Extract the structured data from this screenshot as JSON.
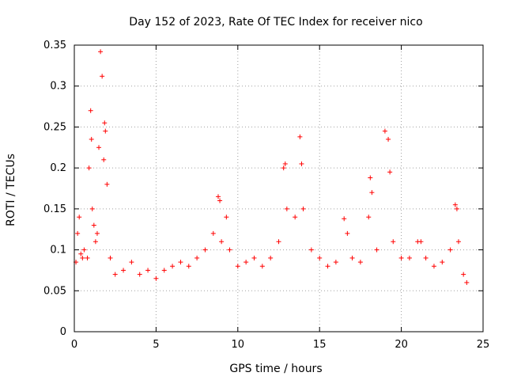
{
  "chart_data": {
    "type": "scatter",
    "title": "Day 152 of 2023, Rate Of TEC Index for receiver nico",
    "xlabel": "GPS time / hours",
    "ylabel": "ROTI / TECUs",
    "xlim": [
      0,
      25
    ],
    "ylim": [
      0,
      0.35
    ],
    "x_ticks": [
      0,
      5,
      10,
      15,
      20,
      25
    ],
    "x_tick_labels": [
      "0",
      "5",
      "10",
      "15",
      "20",
      "25"
    ],
    "y_ticks": [
      0,
      0.05,
      0.1,
      0.15,
      0.2,
      0.25,
      0.3,
      0.35
    ],
    "y_tick_labels": [
      "0",
      "0.05",
      "0.1",
      "0.15",
      "0.2",
      "0.25",
      "0.3",
      "0.35"
    ],
    "grid": true,
    "marker": "+",
    "color": "#ff0000",
    "series": [
      {
        "name": "ROTI",
        "x": [
          0.1,
          0.2,
          0.3,
          0.4,
          0.5,
          0.6,
          0.8,
          0.9,
          1.0,
          1.05,
          1.1,
          1.2,
          1.3,
          1.4,
          1.5,
          1.6,
          1.7,
          1.8,
          1.85,
          1.9,
          2.0,
          2.2,
          2.5,
          3.0,
          3.5,
          4.0,
          4.5,
          5.0,
          5.5,
          6.0,
          6.5,
          7.0,
          7.5,
          8.0,
          8.5,
          8.8,
          8.9,
          9.0,
          9.3,
          9.5,
          10.0,
          10.5,
          11.0,
          11.5,
          12.0,
          12.5,
          12.8,
          12.9,
          13.0,
          13.5,
          13.8,
          13.9,
          14.0,
          14.5,
          15.0,
          15.5,
          16.0,
          16.5,
          16.7,
          17.0,
          17.5,
          18.0,
          18.1,
          18.2,
          18.5,
          19.0,
          19.2,
          19.3,
          19.5,
          20.0,
          20.5,
          21.0,
          21.2,
          21.5,
          22.0,
          22.5,
          23.0,
          23.3,
          23.4,
          23.5,
          23.8,
          24.0
        ],
        "y": [
          0.085,
          0.12,
          0.14,
          0.095,
          0.09,
          0.1,
          0.09,
          0.2,
          0.27,
          0.235,
          0.15,
          0.13,
          0.11,
          0.12,
          0.225,
          0.342,
          0.312,
          0.21,
          0.255,
          0.245,
          0.18,
          0.09,
          0.07,
          0.075,
          0.085,
          0.07,
          0.075,
          0.065,
          0.075,
          0.08,
          0.085,
          0.08,
          0.09,
          0.1,
          0.12,
          0.165,
          0.16,
          0.11,
          0.14,
          0.1,
          0.08,
          0.085,
          0.09,
          0.08,
          0.09,
          0.11,
          0.2,
          0.205,
          0.15,
          0.14,
          0.238,
          0.205,
          0.15,
          0.1,
          0.09,
          0.08,
          0.085,
          0.138,
          0.12,
          0.09,
          0.085,
          0.14,
          0.188,
          0.17,
          0.1,
          0.245,
          0.235,
          0.195,
          0.11,
          0.09,
          0.09,
          0.11,
          0.11,
          0.09,
          0.08,
          0.085,
          0.1,
          0.155,
          0.15,
          0.11,
          0.07,
          0.06
        ]
      }
    ]
  }
}
